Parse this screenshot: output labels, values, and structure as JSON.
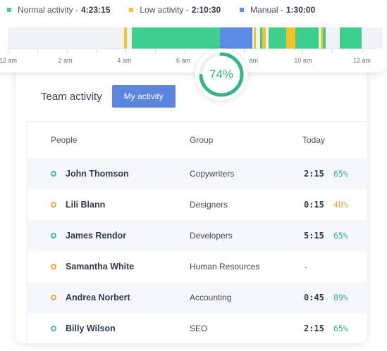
{
  "timeline": {
    "legend": [
      {
        "label": "Normal activity",
        "value": "4:23:15",
        "color": "#3ccf8e"
      },
      {
        "label": "Low activity",
        "value": "2:10:30",
        "color": "#f6c129"
      },
      {
        "label": "Manual",
        "value": "1:30:00",
        "color": "#5b8de8"
      }
    ],
    "axis_labels": [
      "12 am",
      "2 am",
      "4 am",
      "6 am",
      "am",
      "10 am",
      "12 am"
    ],
    "segments": [
      {
        "type": "low",
        "start_hour": 3.95,
        "end_hour": 4.05
      },
      {
        "type": "normal",
        "start_hour": 4.2,
        "end_hour": 7.2
      },
      {
        "type": "manual",
        "start_hour": 7.2,
        "end_hour": 8.3
      },
      {
        "type": "low",
        "start_hour": 8.35,
        "end_hour": 8.42
      },
      {
        "type": "normal",
        "start_hour": 8.55,
        "end_hour": 8.62
      },
      {
        "type": "low",
        "start_hour": 8.62,
        "end_hour": 8.75
      },
      {
        "type": "normal",
        "start_hour": 8.85,
        "end_hour": 9.45
      },
      {
        "type": "low",
        "start_hour": 9.45,
        "end_hour": 9.75
      },
      {
        "type": "normal",
        "start_hour": 9.75,
        "end_hour": 10.55
      },
      {
        "type": "low",
        "start_hour": 10.62,
        "end_hour": 10.68
      },
      {
        "type": "normal",
        "start_hour": 10.68,
        "end_hour": 10.78
      },
      {
        "type": "normal",
        "start_hour": 11.25,
        "end_hour": 12.0
      }
    ],
    "productivity_percent": 74,
    "productivity_label": "74%"
  },
  "team": {
    "title": "Team activity",
    "my_activity_label": "My activity",
    "columns": {
      "people": "People",
      "group": "Group",
      "today": "Today"
    },
    "rows": [
      {
        "name": "John Thomson",
        "group": "Copywriters",
        "time": "2:15",
        "pct": "65%",
        "status": "green",
        "pct_color": "green"
      },
      {
        "name": "Lili Blann",
        "group": "Designers",
        "time": "0:15",
        "pct": "40%",
        "status": "orange",
        "pct_color": "orange"
      },
      {
        "name": "James Rendor",
        "group": "Developers",
        "time": "5:15",
        "pct": "65%",
        "status": "green",
        "pct_color": "green"
      },
      {
        "name": "Samantha White",
        "group": "Human Resources",
        "time": "-",
        "pct": "",
        "status": "orange",
        "pct_color": ""
      },
      {
        "name": "Andrea Norbert",
        "group": "Accounting",
        "time": "0:45",
        "pct": "89%",
        "status": "orange",
        "pct_color": "green"
      },
      {
        "name": "Billy Wilson",
        "group": "SEO",
        "time": "2:15",
        "pct": "65%",
        "status": "green",
        "pct_color": "green"
      }
    ]
  },
  "colors": {
    "normal": "#3ccf8e",
    "low": "#f6c129",
    "manual": "#5b8de8",
    "accent_button": "#5c86dd",
    "gauge": "#35b583"
  }
}
